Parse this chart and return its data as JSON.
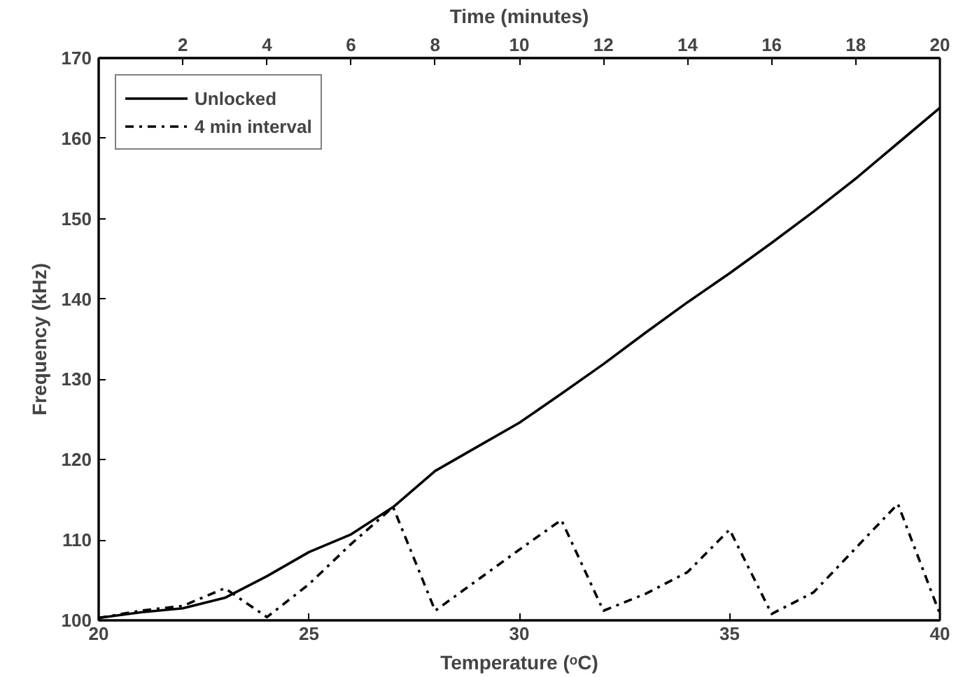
{
  "chart_data": {
    "type": "line",
    "xlabel": "Temperature (ᵒC)",
    "ylabel": "Frequency (kHz)",
    "x2label": "Time (minutes)",
    "x": [
      20,
      21,
      22,
      23,
      24,
      25,
      26,
      27,
      28,
      29,
      30,
      31,
      32,
      33,
      34,
      35,
      36,
      37,
      38,
      39,
      40
    ],
    "series": [
      {
        "name": "Unlocked",
        "color": "#000000",
        "line_style": "solid",
        "values": [
          100.3,
          101,
          101.5,
          102.8,
          105.5,
          108.5,
          110.7,
          114.1,
          118.6,
          121.6,
          124.6,
          128.2,
          131.9,
          135.8,
          139.6,
          143.2,
          147,
          150.9,
          155,
          159.4,
          163.8
        ]
      },
      {
        "name": "4 min interval",
        "color": "#000000",
        "line_style": "dashdot",
        "values": [
          100.3,
          101.2,
          101.8,
          104,
          100.4,
          104.5,
          109.5,
          114.1,
          101.2,
          105,
          108.8,
          112.5,
          101.2,
          103.3,
          106,
          111.3,
          100.8,
          103.5,
          109,
          114.5,
          100.8
        ]
      }
    ],
    "xlim": [
      20,
      40
    ],
    "xticks": [
      20,
      25,
      30,
      35,
      40
    ],
    "ylim": [
      100,
      170
    ],
    "yticks": [
      100,
      110,
      120,
      130,
      140,
      150,
      160,
      170
    ],
    "x2lim": [
      0,
      20
    ],
    "x2ticks": [
      2,
      4,
      6,
      8,
      10,
      12,
      14,
      16,
      18,
      20
    ],
    "grid": false,
    "legend": "top left"
  }
}
